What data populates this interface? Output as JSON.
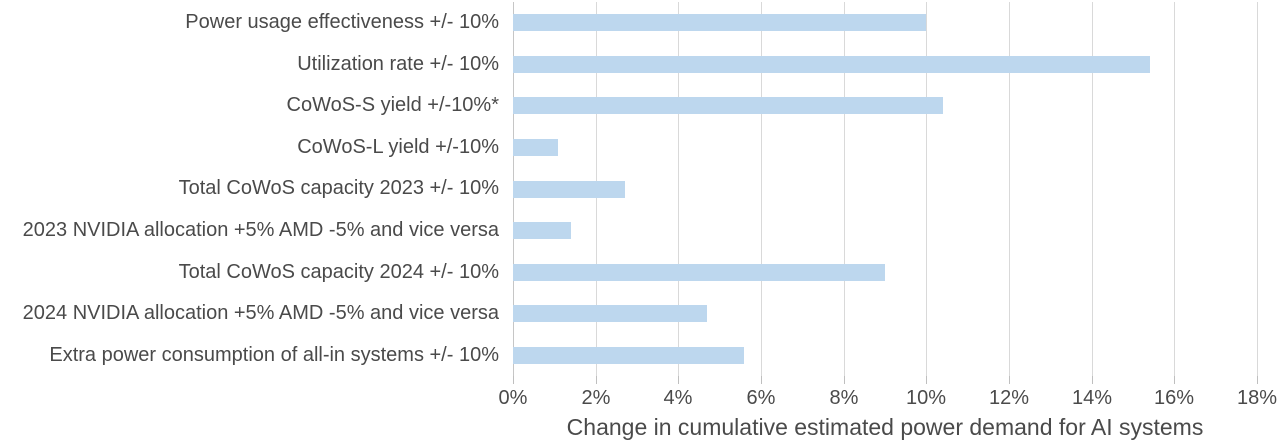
{
  "chart_data": {
    "type": "bar",
    "orientation": "horizontal",
    "title": "",
    "xlabel": "Change in cumulative estimated power demand for AI systems",
    "ylabel": "",
    "xlim": [
      0,
      18
    ],
    "grid": "vertical",
    "legend": "none",
    "categories": [
      "Power usage effectiveness +/- 10%",
      "Utilization rate +/- 10%",
      "CoWoS-S yield +/-10%*",
      "CoWoS-L yield +/-10%",
      "Total CoWoS capacity 2023 +/- 10%",
      "2023 NVIDIA allocation +5% AMD -5% and vice versa",
      "Total CoWoS capacity 2024 +/- 10%",
      "2024 NVIDIA allocation +5% AMD -5% and vice versa",
      "Extra power consumption of all-in systems +/- 10%"
    ],
    "values": [
      10.0,
      15.4,
      10.4,
      1.1,
      2.7,
      1.4,
      9.0,
      4.7,
      5.6
    ],
    "x_ticks": [
      "0%",
      "2%",
      "4%",
      "6%",
      "8%",
      "10%",
      "12%",
      "14%",
      "16%",
      "18%"
    ],
    "x_tick_values": [
      0,
      2,
      4,
      6,
      8,
      10,
      12,
      14,
      16,
      18
    ],
    "colors": {
      "bar": "#BDD7EE",
      "gridline": "#D9D9D9",
      "axis_line": "#C6C6C6",
      "tick_mark": "#BFBFBF",
      "text": "#4A4A4A",
      "background": "#FFFFFF"
    }
  }
}
